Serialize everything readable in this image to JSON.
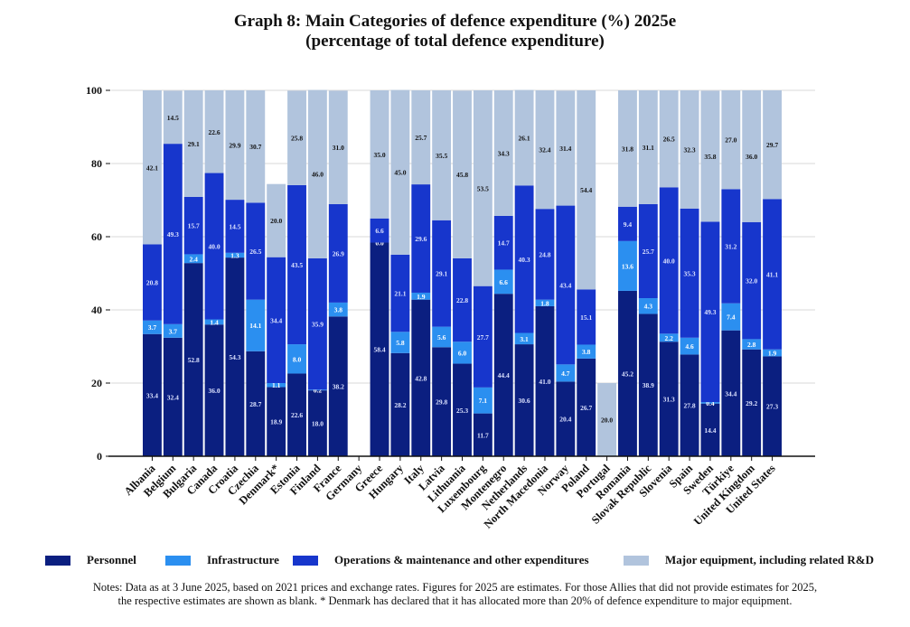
{
  "title_line1": "Graph 8: Main Categories of  defence expenditure (%) 2025e",
  "title_line2": "(percentage of  total defence expenditure)",
  "chart_data": {
    "type": "bar",
    "stacked": true,
    "title": "Graph 8: Main Categories of defence expenditure (%) 2025e (percentage of total defence expenditure)",
    "xlabel": "",
    "ylabel": "",
    "ylim": [
      0,
      100
    ],
    "yticks": [
      0,
      20,
      40,
      60,
      80,
      100
    ],
    "grid": true,
    "legend_position": "bottom",
    "categories": [
      "Albania",
      "Belgium",
      "Bulgaria",
      "Canada",
      "Croatia",
      "Czechia",
      "Denmark*",
      "Estonia",
      "Finland",
      "France",
      "Germany",
      "Greece",
      "Hungary",
      "Italy",
      "Latvia",
      "Lithuania",
      "Luxembourg",
      "Montenegro",
      "Netherlands",
      "North Macedonia",
      "Norway",
      "Poland",
      "Portugal",
      "Romania",
      "Slovak Republic",
      "Slovenia",
      "Spain",
      "Sweden",
      "Türkiye",
      "United Kingdom",
      "United States"
    ],
    "series": [
      {
        "name": "Personnel",
        "color": "#0b1f80",
        "label_color": "#dde3ff",
        "values": [
          33.4,
          32.4,
          52.8,
          36.0,
          54.3,
          28.7,
          18.9,
          22.6,
          18.0,
          38.2,
          null,
          58.4,
          28.2,
          42.8,
          29.8,
          25.3,
          11.7,
          44.4,
          30.6,
          41.0,
          20.4,
          26.7,
          null,
          45.2,
          38.9,
          31.3,
          27.8,
          14.4,
          34.4,
          29.2,
          27.3
        ]
      },
      {
        "name": "Infrastructure",
        "color": "#2b8ff0",
        "label_color": "#ffffff",
        "values": [
          3.7,
          3.7,
          2.4,
          1.4,
          1.3,
          14.1,
          1.1,
          8.0,
          0.2,
          3.8,
          null,
          0.0,
          5.8,
          1.9,
          5.6,
          6.0,
          7.1,
          6.6,
          3.1,
          1.8,
          4.7,
          3.8,
          null,
          13.6,
          4.3,
          2.2,
          4.6,
          0.4,
          7.4,
          2.8,
          1.9
        ]
      },
      {
        "name": "Operations & maintenance and other expenditures",
        "color": "#1736cc",
        "label_color": "#dde3ff",
        "values": [
          20.8,
          49.3,
          15.7,
          40.0,
          14.5,
          26.5,
          34.4,
          43.5,
          35.9,
          26.9,
          null,
          6.6,
          21.1,
          29.6,
          29.1,
          22.8,
          27.7,
          14.7,
          40.3,
          24.8,
          43.4,
          15.1,
          null,
          9.4,
          25.7,
          40.0,
          35.3,
          49.3,
          31.2,
          32.0,
          41.1
        ]
      },
      {
        "name": "Major equipment, including related R&D",
        "color": "#b1c4dd",
        "label_color": "#111111",
        "values": [
          42.1,
          14.5,
          29.1,
          22.6,
          29.9,
          30.7,
          20.0,
          25.8,
          46.0,
          31.0,
          null,
          35.0,
          45.0,
          25.7,
          35.5,
          45.8,
          53.5,
          34.3,
          26.1,
          32.4,
          31.4,
          54.4,
          20.0,
          31.8,
          31.1,
          26.5,
          32.3,
          35.8,
          27.0,
          36.0,
          29.7
        ]
      }
    ]
  },
  "legend": [
    {
      "label": "Personnel",
      "color": "#0b1f80"
    },
    {
      "label": "Infrastructure",
      "color": "#2b8ff0"
    },
    {
      "label": "Operations & maintenance and other expenditures",
      "color": "#1736cc"
    },
    {
      "label": "Major equipment, including related R&D",
      "color": "#b1c4dd"
    }
  ],
  "notes_line1": "Notes: Data as at 3 June 2025, based on 2021 prices and exchange rates. Figures for 2025 are estimates. For those Allies that did not provide estimates for 2025,",
  "notes_line2": "the respective estimates are shown as blank. * Denmark has declared that it has allocated more than 20% of defence expenditure to major equipment."
}
